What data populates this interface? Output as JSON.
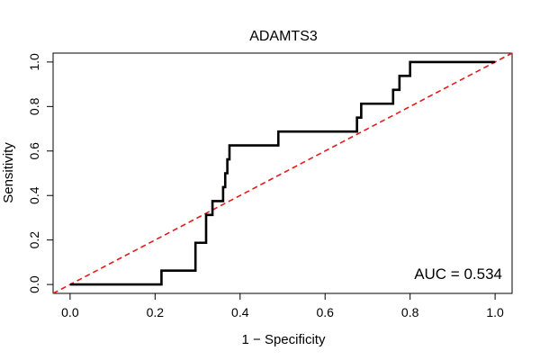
{
  "chart_data": {
    "type": "line",
    "title": "ADAMTS3",
    "xlabel": "1 − Specificity",
    "ylabel": "Sensitivity",
    "xlim": [
      -0.04,
      1.04
    ],
    "ylim": [
      -0.04,
      1.04
    ],
    "x_ticks": [
      0.0,
      0.2,
      0.4,
      0.6,
      0.8,
      1.0
    ],
    "x_tick_labels": [
      "0.0",
      "0.2",
      "0.4",
      "0.6",
      "0.8",
      "1.0"
    ],
    "y_ticks": [
      0.0,
      0.2,
      0.4,
      0.6,
      0.8,
      1.0
    ],
    "y_tick_labels": [
      "0.0",
      "0.2",
      "0.4",
      "0.6",
      "0.8",
      "1.0"
    ],
    "grid": false,
    "annotation": "AUC = 0.534",
    "roc_color": "#000000",
    "diagonal_color": "#e41a1c",
    "series": [
      {
        "role": "roc",
        "x": [
          0.0,
          0.215,
          0.215,
          0.295,
          0.295,
          0.32,
          0.32,
          0.335,
          0.335,
          0.36,
          0.36,
          0.365,
          0.365,
          0.37,
          0.37,
          0.375,
          0.375,
          0.49,
          0.49,
          0.675,
          0.675,
          0.685,
          0.685,
          0.76,
          0.76,
          0.775,
          0.775,
          0.8,
          0.8,
          1.0
        ],
        "y": [
          0.0,
          0.0,
          0.0625,
          0.0625,
          0.1875,
          0.1875,
          0.3125,
          0.3125,
          0.375,
          0.375,
          0.4375,
          0.4375,
          0.5,
          0.5,
          0.5625,
          0.5625,
          0.625,
          0.625,
          0.6875,
          0.6875,
          0.75,
          0.75,
          0.8125,
          0.8125,
          0.875,
          0.875,
          0.9375,
          0.9375,
          1.0,
          1.0
        ]
      },
      {
        "role": "reference",
        "x": [
          -0.04,
          1.04
        ],
        "y": [
          -0.04,
          1.04
        ]
      }
    ]
  }
}
